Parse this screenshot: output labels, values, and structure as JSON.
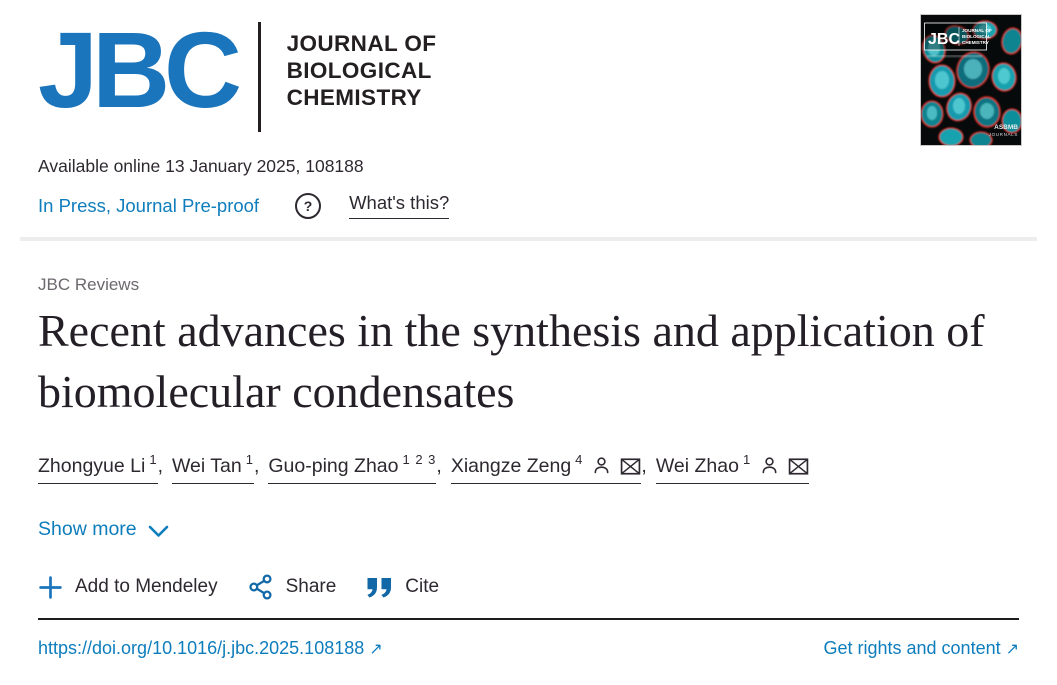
{
  "colors": {
    "logo_blue": "#1b75bc",
    "link_blue": "#0e7dbc",
    "text_dark": "#2e2930",
    "category_grey": "#6d686e"
  },
  "masthead": {
    "acronym": "JBC",
    "journal_line1": "JOURNAL OF",
    "journal_line2": "BIOLOGICAL",
    "journal_line3": "CHEMISTRY"
  },
  "cover": {
    "acronym": "JBC",
    "journal_line1": "JOURNAL OF",
    "journal_line2": "BIOLOGICAL",
    "journal_line3": "CHEMISTRY",
    "footer_line1": "ASBMB",
    "footer_line2": "JOURNALS"
  },
  "meta": {
    "available_online": "Available online 13 January 2025, 108188",
    "in_press_label": "In Press, Journal Pre-proof",
    "question_mark": "?",
    "whats_this_label": "What's this?"
  },
  "article": {
    "category": "JBC Reviews",
    "title": "Recent advances in the synthesis and application of biomolecular condensates",
    "author_separator": ",",
    "authors": [
      {
        "name": "Zhongyue Li",
        "sup": "1",
        "icons": []
      },
      {
        "name": "Wei Tan",
        "sup": "1",
        "icons": []
      },
      {
        "name": "Guo-ping Zhao",
        "sup": "1 2 3",
        "icons": []
      },
      {
        "name": "Xiangze Zeng",
        "sup": "4",
        "icons": [
          "person",
          "email"
        ]
      },
      {
        "name": "Wei Zhao",
        "sup": "1",
        "icons": [
          "person",
          "email"
        ]
      }
    ],
    "show_more_label": "Show more"
  },
  "actions": {
    "mendeley_label": "Add to Mendeley",
    "share_label": "Share",
    "cite_label": "Cite"
  },
  "footer": {
    "doi": "https://doi.org/10.1016/j.jbc.2025.108188",
    "rights_label": "Get rights and content",
    "external_arrow": "↗"
  }
}
